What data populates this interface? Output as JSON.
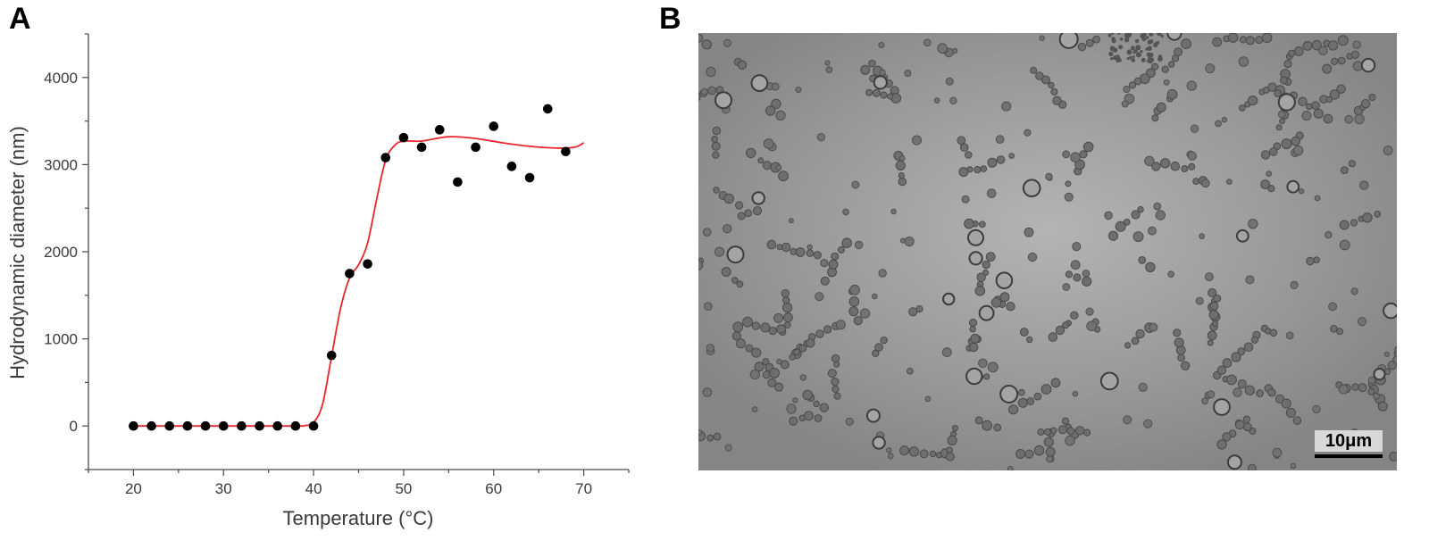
{
  "panels": {
    "a_label": "A",
    "b_label": "B"
  },
  "chart_data": {
    "type": "scatter",
    "xlabel": "Temperature (°C)",
    "ylabel": "Hydrodynamic diameter (nm)",
    "xlim": [
      15,
      75
    ],
    "ylim": [
      -500,
      4500
    ],
    "xticks": [
      20,
      30,
      40,
      50,
      60,
      70
    ],
    "yticks": [
      0,
      1000,
      2000,
      3000,
      4000
    ],
    "grid": false,
    "series": [
      {
        "type": "scatter",
        "color": "#000000",
        "x": [
          20,
          22,
          24,
          26,
          28,
          30,
          32,
          34,
          36,
          38,
          40,
          42,
          44,
          46,
          48,
          50,
          52,
          54,
          56,
          58,
          60,
          62,
          64,
          66,
          68
        ],
        "y": [
          0,
          0,
          0,
          0,
          0,
          0,
          0,
          0,
          0,
          0,
          0,
          810,
          1750,
          1860,
          3080,
          3310,
          3200,
          3400,
          2800,
          3200,
          3440,
          2980,
          2850,
          3640,
          3150
        ]
      },
      {
        "type": "line",
        "color": "#e8262b",
        "x": [
          20,
          30,
          38,
          39,
          40,
          41,
          42,
          43,
          44,
          45,
          46,
          47,
          48,
          49,
          50,
          52,
          55,
          58,
          61,
          64,
          67,
          69,
          70
        ],
        "y": [
          0,
          0,
          0,
          5,
          40,
          250,
          800,
          1350,
          1700,
          1850,
          2100,
          2600,
          3050,
          3220,
          3270,
          3270,
          3320,
          3300,
          3250,
          3210,
          3190,
          3200,
          3250
        ]
      }
    ]
  },
  "micrograph": {
    "scale_bar_label": "10μm",
    "background_color": "#8f8f8f"
  }
}
